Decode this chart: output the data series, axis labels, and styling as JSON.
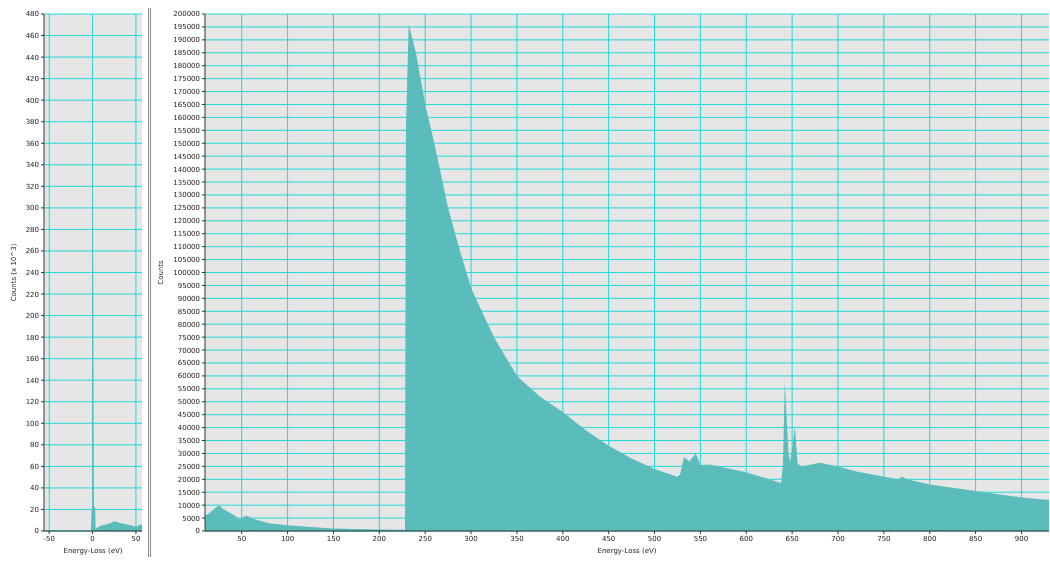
{
  "chart_data": [
    {
      "type": "area",
      "xlabel": "Energy-Loss (eV)",
      "ylabel": "Counts (x 10^3)",
      "grid": true,
      "x": [
        -56,
        -40,
        -20,
        -2,
        -1,
        -0.5,
        0,
        0.5,
        1,
        1.5,
        2,
        3,
        3.5,
        5,
        10,
        15,
        20,
        25,
        30,
        35,
        40,
        45,
        50,
        53,
        55,
        57
      ],
      "series": [
        {
          "color": "#5bbcbc",
          "values": [
            0,
            0,
            0,
            0,
            20,
            22,
            475,
            300,
            180,
            24,
            22,
            22,
            2,
            3,
            5,
            6,
            7,
            9,
            8,
            7,
            6,
            5,
            4,
            5,
            6,
            6
          ]
        }
      ],
      "xlim": [
        -56,
        57
      ],
      "xticks": [
        -50,
        0,
        50
      ],
      "ylim": [
        0,
        480
      ],
      "yticks": [
        0,
        20,
        40,
        60,
        80,
        100,
        120,
        140,
        160,
        180,
        200,
        220,
        240,
        260,
        280,
        300,
        320,
        340,
        360,
        380,
        400,
        420,
        440,
        460,
        480
      ]
    },
    {
      "type": "area",
      "xlabel": "Energy-Loss (eV)",
      "ylabel": "Counts",
      "grid": true,
      "x": [
        10,
        15,
        20,
        25,
        30,
        40,
        48,
        55,
        60,
        70,
        80,
        100,
        125,
        150,
        175,
        200,
        228,
        229,
        232,
        240,
        250,
        260,
        275,
        285,
        300,
        325,
        350,
        375,
        400,
        425,
        450,
        475,
        500,
        525,
        528,
        532,
        538,
        545,
        550,
        560,
        600,
        638,
        640,
        642,
        646,
        648,
        653,
        656,
        660,
        680,
        700,
        720,
        765,
        770,
        775,
        800,
        850,
        900,
        930
      ],
      "series": [
        {
          "color": "#5bbcbc",
          "values": [
            6000,
            7000,
            8500,
            10000,
            8500,
            6500,
            4500,
            6000,
            5000,
            4000,
            3000,
            2200,
            1500,
            1000,
            800,
            600,
            500,
            155000,
            196000,
            185000,
            165000,
            150000,
            125000,
            112000,
            94000,
            75000,
            60000,
            52000,
            46000,
            39000,
            33000,
            28000,
            24000,
            21000,
            22000,
            28500,
            27000,
            30000,
            25500,
            25700,
            22700,
            18600,
            26000,
            57600,
            30000,
            27000,
            40000,
            26000,
            25000,
            26400,
            25000,
            23000,
            20000,
            21000,
            20000,
            18000,
            15500,
            13000,
            12000
          ]
        }
      ],
      "xlim": [
        10,
        930
      ],
      "xticks": [
        50,
        100,
        150,
        200,
        250,
        300,
        350,
        400,
        450,
        500,
        550,
        600,
        650,
        700,
        750,
        800,
        850,
        900
      ],
      "ylim": [
        0,
        200000
      ],
      "yticks": [
        0,
        5000,
        10000,
        15000,
        20000,
        25000,
        30000,
        35000,
        40000,
        45000,
        50000,
        55000,
        60000,
        65000,
        70000,
        75000,
        80000,
        85000,
        90000,
        95000,
        100000,
        105000,
        110000,
        115000,
        120000,
        125000,
        130000,
        135000,
        140000,
        145000,
        150000,
        155000,
        160000,
        165000,
        170000,
        175000,
        180000,
        185000,
        190000,
        195000,
        200000
      ]
    }
  ]
}
